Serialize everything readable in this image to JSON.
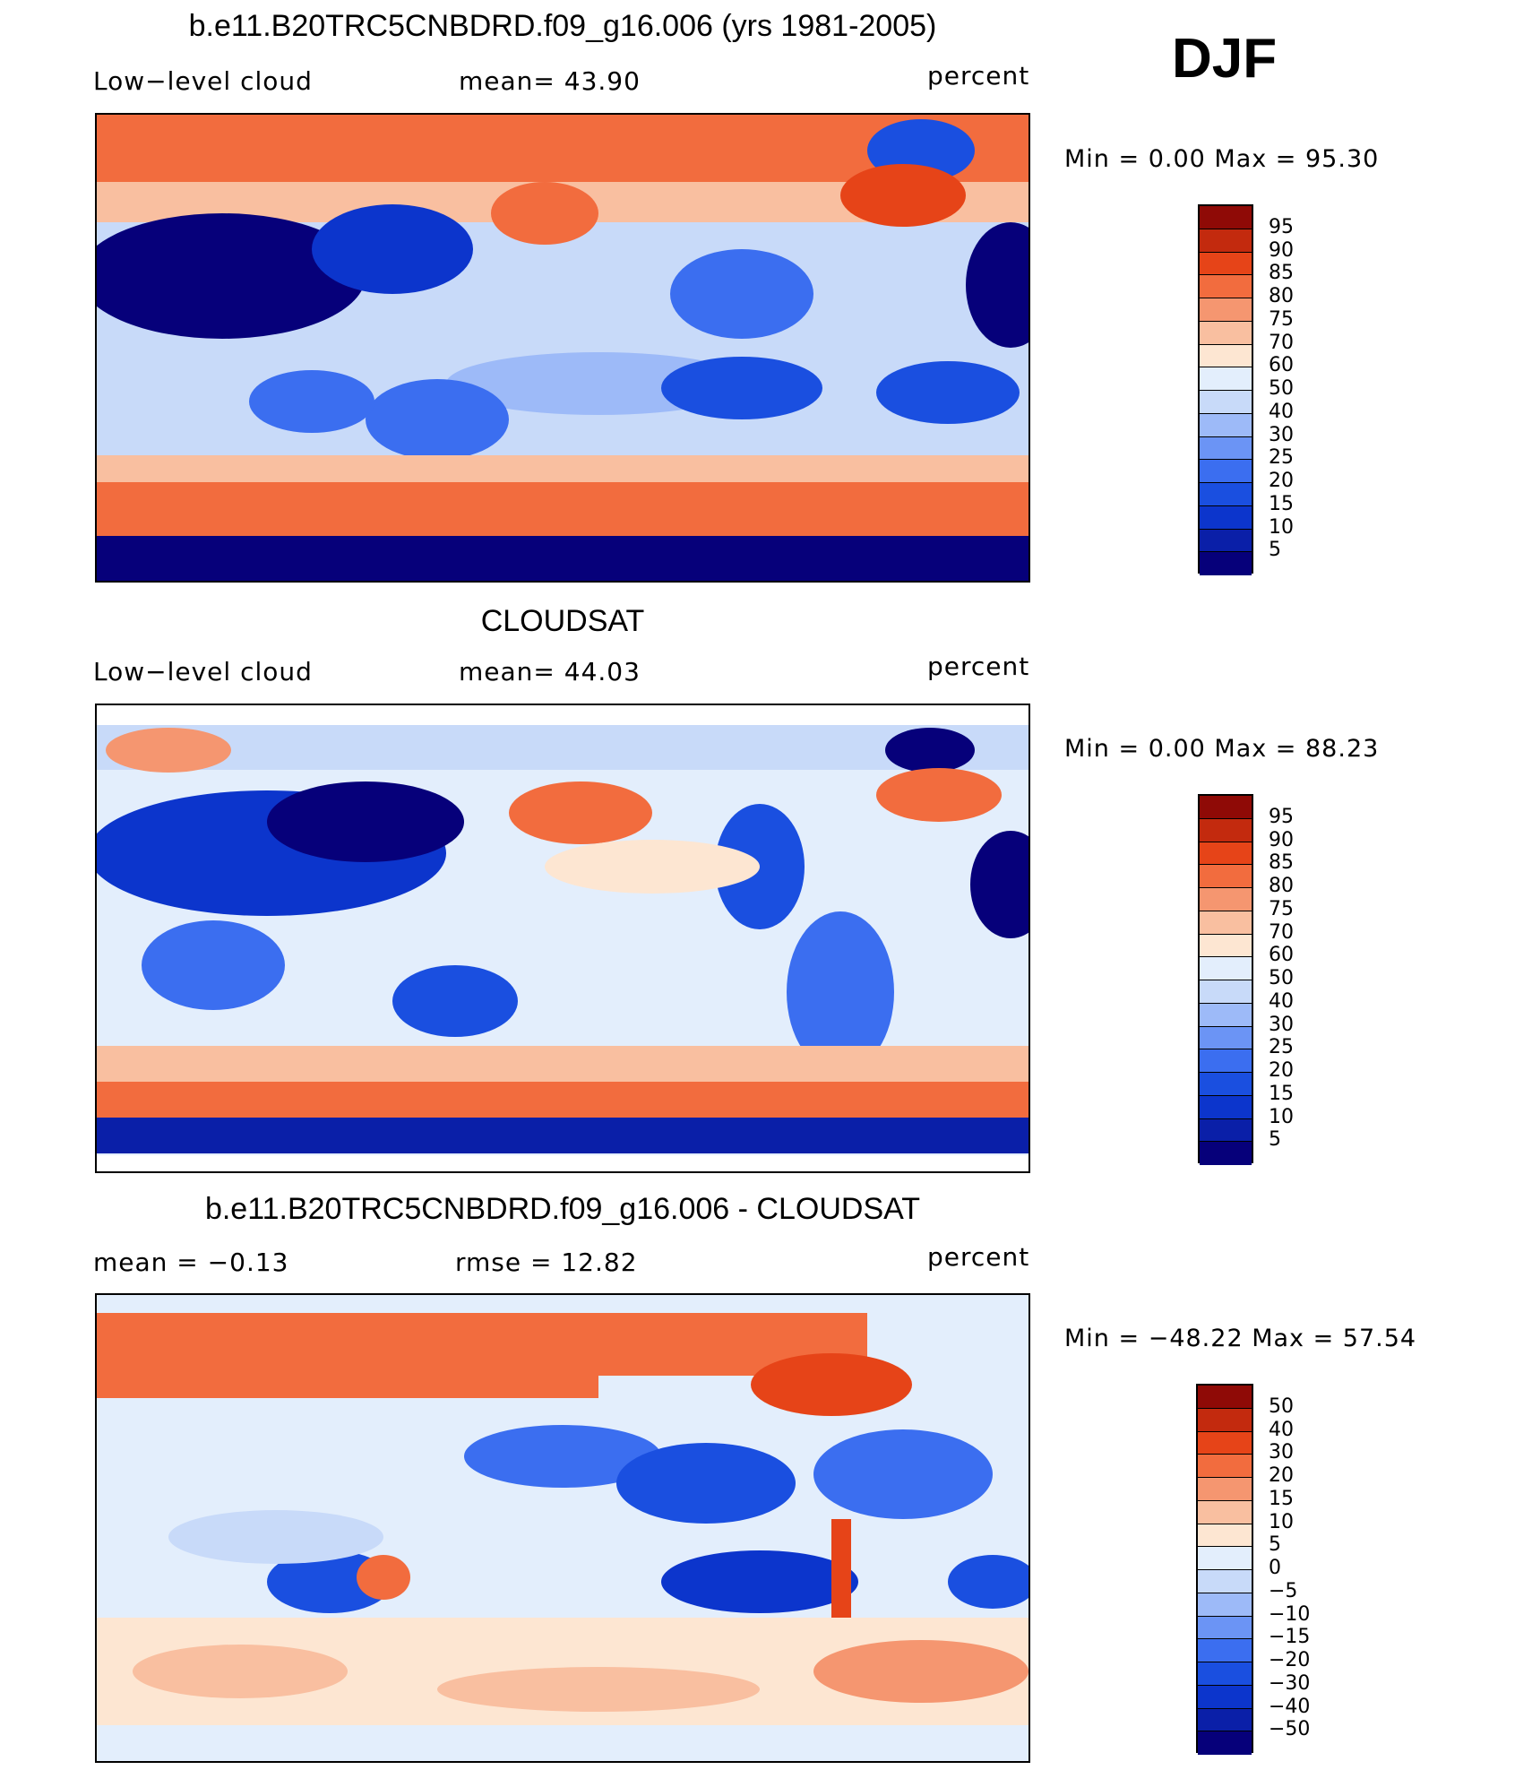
{
  "season": "DJF",
  "panels": [
    {
      "id": "model",
      "title": "b.e11.B20TRC5CNBDRD.f09_g16.006 (yrs 1981-2005)",
      "left_label": "Low−level  cloud",
      "center_label": "mean=   43.90",
      "right_label": "percent",
      "minmax": "Min  =      0.00  Max  =     95.30",
      "colorbar_labels": [
        "95",
        "90",
        "85",
        "80",
        "75",
        "70",
        "60",
        "50",
        "40",
        "30",
        "25",
        "20",
        "15",
        "10",
        "5"
      ]
    },
    {
      "id": "obs",
      "title": "CLOUDSAT",
      "left_label": "Low−level  cloud",
      "center_label": "mean=   44.03",
      "right_label": "percent",
      "minmax": "Min  =      0.00  Max  =     88.23",
      "colorbar_labels": [
        "95",
        "90",
        "85",
        "80",
        "75",
        "70",
        "60",
        "50",
        "40",
        "30",
        "25",
        "20",
        "15",
        "10",
        "5"
      ]
    },
    {
      "id": "diff",
      "title": "b.e11.B20TRC5CNBDRD.f09_g16.006 - CLOUDSAT",
      "left_label": "mean  =    −0.13",
      "center_label": "rmse  =    12.82",
      "right_label": "percent",
      "minmax": "Min  =  −48.22  Max  =    57.54",
      "colorbar_labels": [
        "50",
        "40",
        "30",
        "20",
        "15",
        "10",
        "5",
        "0",
        "−5",
        "−10",
        "−15",
        "−20",
        "−30",
        "−40",
        "−50"
      ]
    }
  ],
  "colors": [
    "#06007a",
    "#0a1fa8",
    "#0c35cc",
    "#1a4fe0",
    "#3b6ef0",
    "#6b94f5",
    "#9dbaf8",
    "#c8daf9",
    "#e3eefc",
    "#fde6d2",
    "#f9bfa0",
    "#f59670",
    "#f26c3e",
    "#e64418",
    "#c32a0e",
    "#8f0a06"
  ]
}
